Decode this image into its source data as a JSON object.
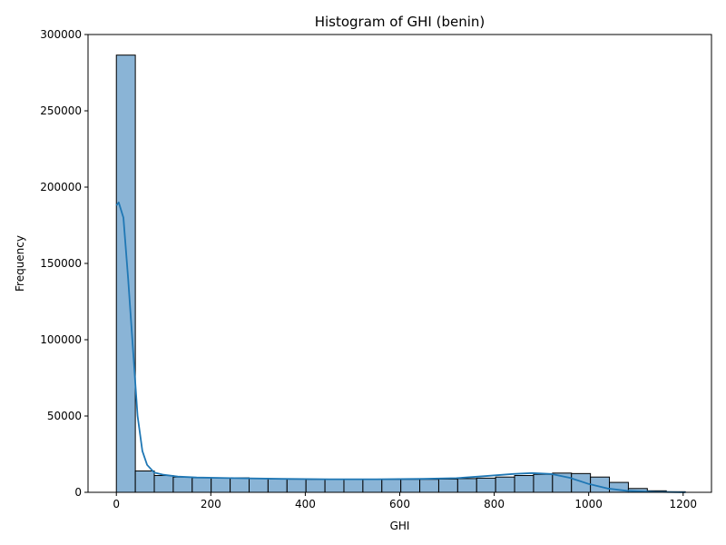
{
  "chart_data": {
    "type": "bar",
    "title": "Histogram of GHI (benin)",
    "xlabel": "GHI",
    "ylabel": "Frequency",
    "xlim": [
      -60,
      1260
    ],
    "ylim": [
      0,
      300000
    ],
    "xticks": [
      0,
      200,
      400,
      600,
      800,
      1000,
      1200
    ],
    "yticks": [
      0,
      50000,
      100000,
      150000,
      200000,
      250000,
      300000
    ],
    "bins": {
      "start": 0,
      "width": 40.15,
      "counts": [
        286500,
        14000,
        11000,
        10000,
        9500,
        9500,
        9500,
        9200,
        8800,
        8600,
        8500,
        8600,
        8500,
        8600,
        8500,
        8500,
        8500,
        8700,
        9000,
        9300,
        10000,
        11000,
        11800,
        12600,
        12300,
        10000,
        6500,
        2500,
        1000,
        400
      ]
    },
    "kde": {
      "x": [
        0,
        5,
        15,
        25,
        35,
        45,
        55,
        65,
        80,
        100,
        130,
        170,
        250,
        350,
        450,
        550,
        650,
        720,
        780,
        840,
        880,
        920,
        960,
        1000,
        1040,
        1080,
        1140,
        1205
      ],
      "y": [
        188000,
        190000,
        180000,
        140000,
        95000,
        50000,
        27000,
        18000,
        13000,
        11500,
        10300,
        9700,
        9300,
        8800,
        8600,
        8600,
        8800,
        9300,
        10600,
        12000,
        12600,
        12000,
        9500,
        5500,
        2500,
        1000,
        300,
        0
      ]
    },
    "colors": {
      "bar_fill": "#8ab4d6",
      "bar_edge": "#000000",
      "kde_line": "#1f77b4"
    },
    "grid": false,
    "legend": "none"
  }
}
